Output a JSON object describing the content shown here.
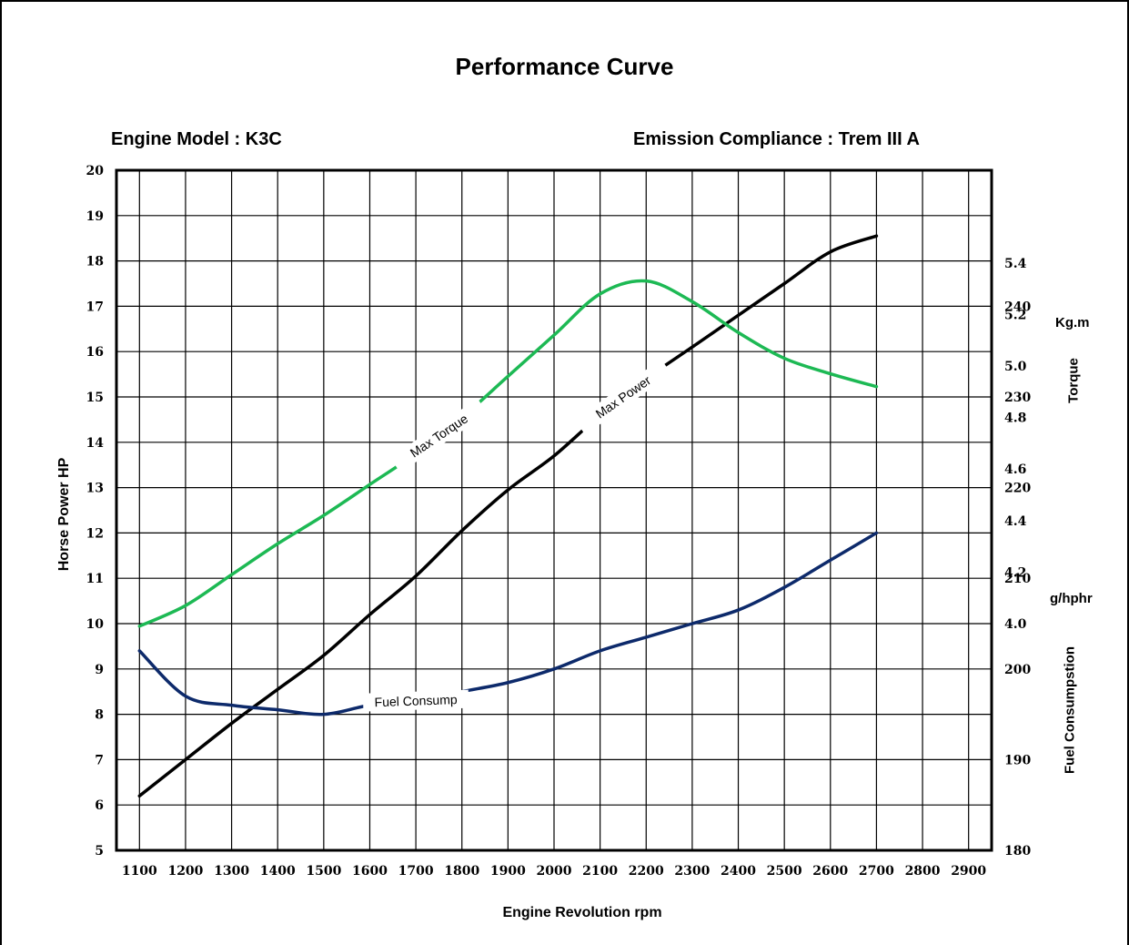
{
  "chart_data": {
    "type": "line",
    "title": "Performance Curve",
    "subtitle_left": "Engine Model : K3C",
    "subtitle_right": "Emission Compliance : Trem III A",
    "xlabel": "Engine Revolution  rpm",
    "ylabel_left": "Horse Power HP",
    "ylabel_right_top": "Torque",
    "ylabel_right_top_unit": "Kg.m",
    "ylabel_right_bottom": "Fuel Consumpstion",
    "ylabel_right_bottom_unit": "g/hphr",
    "xlim": [
      1050,
      2950
    ],
    "ylim": [
      5,
      20
    ],
    "torque_lim": [
      3.12,
      5.76
    ],
    "fuel_lim": [
      180,
      255
    ],
    "grid": true,
    "x_ticks": [
      1100,
      1200,
      1300,
      1400,
      1500,
      1600,
      1700,
      1800,
      1900,
      2000,
      2100,
      2200,
      2300,
      2400,
      2500,
      2600,
      2700,
      2800,
      2900
    ],
    "y_ticks": [
      5,
      6,
      7,
      8,
      9,
      10,
      11,
      12,
      13,
      14,
      15,
      16,
      17,
      18,
      19,
      20
    ],
    "torque_ticks": [
      "4.0",
      "4.2",
      "4.4",
      "4.6",
      "4.8",
      "5.0",
      "5.2",
      "5.4"
    ],
    "fuel_ticks": [
      180,
      190,
      200,
      210,
      220,
      230,
      240
    ],
    "series": [
      {
        "name": "Max Power",
        "axis": "hp",
        "color": "#000000",
        "x": [
          1100,
          1200,
          1300,
          1400,
          1500,
          1600,
          1700,
          1800,
          1900,
          2000,
          2100,
          2200,
          2300,
          2400,
          2500,
          2600,
          2700
        ],
        "values": [
          6.2,
          7.0,
          7.8,
          8.55,
          9.3,
          10.2,
          11.05,
          12.05,
          12.95,
          13.7,
          14.6,
          15.4,
          16.1,
          16.8,
          17.5,
          18.2,
          18.55
        ]
      },
      {
        "name": "Max Torque",
        "axis": "torque",
        "color": "#1db954",
        "x": [
          1100,
          1200,
          1300,
          1400,
          1500,
          1600,
          1700,
          1800,
          1900,
          2000,
          2100,
          2200,
          2300,
          2400,
          2500,
          2600,
          2700
        ],
        "values": [
          3.99,
          4.07,
          4.19,
          4.31,
          4.42,
          4.54,
          4.66,
          4.8,
          4.96,
          5.12,
          5.28,
          5.33,
          5.25,
          5.13,
          5.03,
          4.97,
          4.92
        ]
      },
      {
        "name": "Fuel Consump",
        "axis": "fuel",
        "color": "#0d2a6b",
        "x": [
          1100,
          1200,
          1300,
          1400,
          1500,
          1600,
          1700,
          1800,
          1900,
          2000,
          2100,
          2200,
          2300,
          2400,
          2500,
          2600,
          2700
        ],
        "values": [
          202,
          197,
          196,
          195.5,
          195,
          196,
          196.5,
          197.5,
          198.5,
          200,
          202,
          203.5,
          205,
          206.5,
          209,
          212,
          215
        ]
      }
    ]
  }
}
